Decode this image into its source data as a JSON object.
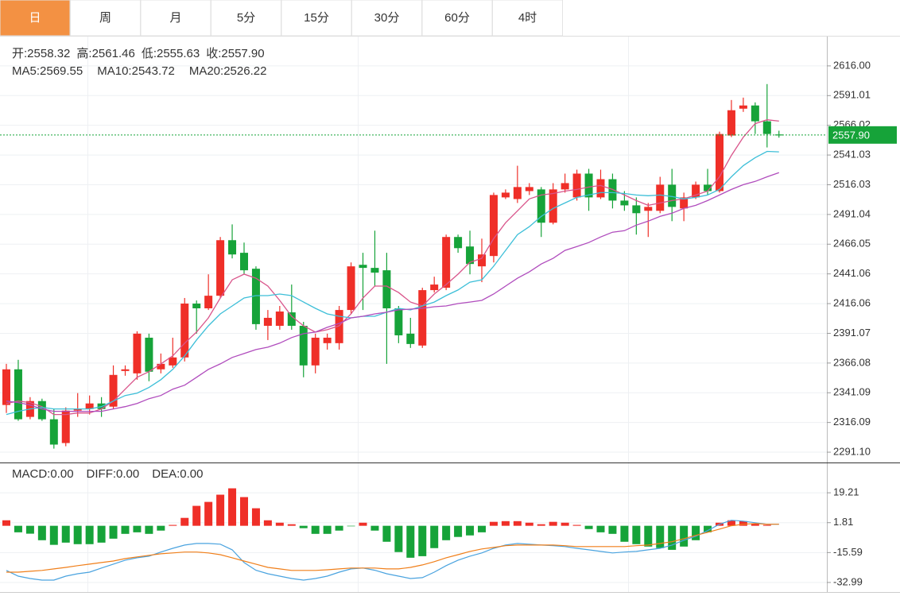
{
  "tabs": [
    "日",
    "周",
    "月",
    "5分",
    "15分",
    "30分",
    "60分",
    "4时"
  ],
  "active_tab": "日",
  "chart_data": [
    {
      "type": "candlestick",
      "up_color": "#ef2f28",
      "down_color": "#16a339",
      "ohlc": [
        {
          "label": "开:",
          "value": "2558.32"
        },
        {
          "label": "高:",
          "value": "2561.46"
        },
        {
          "label": "低:",
          "value": "2555.63"
        },
        {
          "label": "收:",
          "value": "2557.90"
        }
      ],
      "open": [
        2330.8,
        2360.8,
        2320.8,
        2334.1,
        2318.8,
        2298.8,
        2326.1,
        2327.4,
        2332.1,
        2329.4,
        2359.4,
        2357.4,
        2387.4,
        2360.8,
        2364.1,
        2370.8,
        2416.1,
        2412.1,
        2422.7,
        2469.4,
        2458.8,
        2445.4,
        2397.4,
        2397.4,
        2408.7,
        2397.4,
        2364.1,
        2382.8,
        2382.8,
        2410.7,
        2448.7,
        2446.1,
        2444.1,
        2412.1,
        2390.8,
        2380.8,
        2427.4,
        2429.4,
        2472.1,
        2464.1,
        2447.4,
        2456.1,
        2505.4,
        2504.0,
        2510.7,
        2512.1,
        2484.1,
        2512.1,
        2505.4,
        2525.4,
        2505.4,
        2520.7,
        2502.7,
        2498.7,
        2494.1,
        2494.1,
        2516.1,
        2496.1,
        2505.4,
        2516.1,
        2510.7,
        2557.4,
        2580.0,
        2582.7,
        2569.4,
        2558.32
      ],
      "high": [
        2365.4,
        2368.8,
        2337.4,
        2336.1,
        2327.4,
        2328.8,
        2340.8,
        2338.8,
        2337.4,
        2364.1,
        2364.1,
        2392.8,
        2390.8,
        2374.1,
        2387.4,
        2420.8,
        2418.7,
        2440.7,
        2472.1,
        2482.7,
        2467.4,
        2447.4,
        2410.7,
        2414.1,
        2432.1,
        2400.7,
        2390.8,
        2390.8,
        2414.1,
        2450.7,
        2458.8,
        2477.4,
        2458.8,
        2414.1,
        2404.1,
        2429.4,
        2438.7,
        2474.1,
        2474.1,
        2477.4,
        2470.7,
        2509.4,
        2512.1,
        2532.0,
        2517.4,
        2514.1,
        2517.4,
        2525.4,
        2528.7,
        2529.4,
        2528.7,
        2525.4,
        2510.7,
        2505.4,
        2500.7,
        2522.7,
        2529.4,
        2509.4,
        2518.7,
        2529.4,
        2560.7,
        2587.3,
        2589.3,
        2585.3,
        2600.7,
        2561.46
      ],
      "low": [
        2324.1,
        2317.5,
        2318.8,
        2317.5,
        2294.1,
        2296.1,
        2320.8,
        2322.8,
        2320.8,
        2327.4,
        2355.4,
        2352.1,
        2350.8,
        2357.4,
        2362.1,
        2367.4,
        2390.8,
        2410.7,
        2420.7,
        2454.1,
        2440.7,
        2394.1,
        2385.4,
        2394.1,
        2394.1,
        2354.1,
        2357.4,
        2377.4,
        2377.4,
        2407.4,
        2410.7,
        2430.7,
        2365.4,
        2382.8,
        2378.8,
        2378.8,
        2425.4,
        2427.4,
        2458.8,
        2440.7,
        2434.1,
        2450.7,
        2504.0,
        2500.7,
        2507.4,
        2472.1,
        2482.7,
        2509.4,
        2502.7,
        2494.1,
        2504.0,
        2496.1,
        2494.1,
        2474.1,
        2472.1,
        2492.1,
        2485.4,
        2485.4,
        2504.0,
        2507.4,
        2509.4,
        2556.1,
        2577.3,
        2558.7,
        2547.4,
        2555.63
      ],
      "close": [
        2360.8,
        2318.8,
        2334.1,
        2318.8,
        2297.5,
        2326.1,
        2327.4,
        2332.1,
        2327.4,
        2356.1,
        2360.8,
        2390.8,
        2358.8,
        2365.4,
        2370.8,
        2416.1,
        2412.1,
        2422.7,
        2469.4,
        2457.4,
        2444.1,
        2398.8,
        2404.1,
        2409.4,
        2397.4,
        2364.1,
        2387.4,
        2387.4,
        2410.7,
        2447.4,
        2446.1,
        2442.1,
        2412.1,
        2389.4,
        2382.1,
        2427.4,
        2432.1,
        2472.1,
        2462.7,
        2449.4,
        2457.4,
        2507.4,
        2509.4,
        2514.1,
        2514.1,
        2484.1,
        2512.1,
        2517.4,
        2525.4,
        2505.4,
        2520.7,
        2502.7,
        2498.7,
        2492.1,
        2497.4,
        2516.1,
        2497.4,
        2505.4,
        2516.1,
        2510.7,
        2558.7,
        2578.7,
        2582.7,
        2569.4,
        2558.7,
        2557.9
      ],
      "series": [
        {
          "name": "MA5: ",
          "legend_value": "2569.55",
          "color": "#d9558b",
          "values": [
            2332.1,
            2334.1,
            2332.8,
            2329.4,
            2322.8,
            2322.8,
            2324.1,
            2324.1,
            2327.5,
            2334.1,
            2344.1,
            2354.1,
            2358.8,
            2365.4,
            2372.1,
            2382.8,
            2392.1,
            2404.1,
            2420.8,
            2436.1,
            2440.8,
            2437.4,
            2430.8,
            2418.8,
            2405.4,
            2397.4,
            2392.1,
            2394.1,
            2397.4,
            2407.4,
            2420.8,
            2430.8,
            2430.8,
            2425.4,
            2417.4,
            2414.1,
            2424.1,
            2432.1,
            2440.8,
            2450.8,
            2454.1,
            2470.7,
            2484.1,
            2494.1,
            2504.1,
            2507.4,
            2508.7,
            2510.7,
            2512.1,
            2514.1,
            2515.4,
            2512.1,
            2507.4,
            2502.7,
            2498.7,
            2500.7,
            2502.7,
            2504.1,
            2507.4,
            2510.7,
            2522.7,
            2540.7,
            2556.0,
            2567.4,
            2570.7,
            2569.55
          ]
        },
        {
          "name": "MA10: ",
          "legend_value": "2543.72",
          "color": "#3dbfd8",
          "values": [
            2322.8,
            2325.5,
            2327.5,
            2328.8,
            2327.5,
            2327.5,
            2327.5,
            2327.5,
            2329.4,
            2334.1,
            2338.8,
            2340.8,
            2345.5,
            2352.1,
            2360.8,
            2372.1,
            2385.5,
            2397.4,
            2407.4,
            2414.1,
            2420.8,
            2422.8,
            2422.8,
            2424.1,
            2422.8,
            2417.4,
            2412.1,
            2407.4,
            2405.4,
            2404.1,
            2405.4,
            2405.4,
            2408.8,
            2412.1,
            2410.8,
            2414.1,
            2417.4,
            2422.8,
            2427.5,
            2434.1,
            2436.1,
            2447.5,
            2460.8,
            2474.1,
            2480.8,
            2489.4,
            2496.1,
            2500.7,
            2505.4,
            2507.4,
            2509.4,
            2509.4,
            2508.7,
            2507.4,
            2506.8,
            2507.4,
            2506.1,
            2504.1,
            2505.4,
            2507.4,
            2512.1,
            2522.7,
            2532.1,
            2538.8,
            2544.1,
            2543.72
          ]
        },
        {
          "name": "MA20: ",
          "legend_value": "2526.22",
          "color": "#b04cbd",
          "values": [
            2334.1,
            2332.8,
            2330.8,
            2327.5,
            2325.5,
            2325.5,
            2325.5,
            2325.5,
            2325.5,
            2327.5,
            2329.4,
            2332.1,
            2336.1,
            2338.8,
            2344.1,
            2347.5,
            2354.1,
            2360.8,
            2365.4,
            2370.8,
            2374.1,
            2377.4,
            2379.4,
            2382.8,
            2387.5,
            2390.8,
            2392.1,
            2396.1,
            2399.4,
            2404.1,
            2405.4,
            2407.4,
            2408.8,
            2410.8,
            2411.4,
            2412.1,
            2413.4,
            2414.1,
            2416.1,
            2417.4,
            2418.8,
            2424.1,
            2430.8,
            2437.4,
            2442.8,
            2449.4,
            2454.1,
            2460.8,
            2464.1,
            2467.4,
            2472.1,
            2476.1,
            2477.4,
            2482.1,
            2485.4,
            2489.4,
            2492.1,
            2496.1,
            2498.7,
            2502.7,
            2507.4,
            2512.1,
            2516.1,
            2518.8,
            2522.7,
            2526.22
          ]
        }
      ],
      "last_price": {
        "value": 2557.9,
        "label": "2557.90",
        "color": "#16a339"
      },
      "ylim": [
        2282.44,
        2640.66
      ],
      "yticks": [
        {
          "value": 2616.0,
          "label": "2616.00"
        },
        {
          "value": 2591.01,
          "label": "2591.01"
        },
        {
          "value": 2566.02,
          "label": "2566.02"
        },
        {
          "value": 2541.03,
          "label": "2541.03"
        },
        {
          "value": 2516.03,
          "label": "2516.03"
        },
        {
          "value": 2491.04,
          "label": "2491.04"
        },
        {
          "value": 2466.05,
          "label": "2466.05"
        },
        {
          "value": 2441.06,
          "label": "2441.06"
        },
        {
          "value": 2416.06,
          "label": "2416.06"
        },
        {
          "value": 2391.07,
          "label": "2391.07"
        },
        {
          "value": 2366.08,
          "label": "2366.08"
        },
        {
          "value": 2341.09,
          "label": "2341.09"
        },
        {
          "value": 2316.09,
          "label": "2316.09"
        },
        {
          "value": 2291.1,
          "label": "2291.10"
        }
      ],
      "grid": true
    },
    {
      "type": "macd",
      "up_color": "#ef2f28",
      "down_color": "#16a339",
      "series": [
        {
          "name": "MACD:",
          "legend_value": "0.00",
          "style": "bar",
          "color": "#e0403a",
          "values": [
            3.2,
            -3.8,
            -4.6,
            -8.4,
            -11.1,
            -9.8,
            -10.7,
            -10.7,
            -9.8,
            -7.5,
            -4.7,
            -3.8,
            -4.7,
            -2.8,
            0.5,
            4.6,
            11.6,
            13.9,
            18.1,
            21.8,
            16.7,
            10.2,
            3.2,
            1.8,
            0.9,
            -1.4,
            -4.7,
            -4.7,
            -2.8,
            -0.3,
            1.8,
            -2.8,
            -9.3,
            -15.3,
            -18.6,
            -17.7,
            -13.0,
            -8.4,
            -6.5,
            -5.6,
            -3.8,
            2.3,
            2.7,
            2.7,
            1.8,
            0.9,
            2.3,
            1.8,
            0.5,
            -1.9,
            -3.8,
            -4.7,
            -9.3,
            -10.7,
            -12.1,
            -13.0,
            -14.0,
            -12.1,
            -8.4,
            -3.8,
            1.8,
            3.2,
            2.7,
            1.4,
            0.5,
            0
          ]
        },
        {
          "name": "DIFF:",
          "legend_value": "0.00",
          "style": "line",
          "color": "#4aa3df",
          "values": [
            -26.0,
            -29.3,
            -30.7,
            -31.6,
            -31.6,
            -29.3,
            -27.9,
            -27.0,
            -24.6,
            -22.3,
            -20.0,
            -18.6,
            -17.7,
            -15.3,
            -13.1,
            -11.2,
            -10.3,
            -10.3,
            -10.7,
            -14.0,
            -21.4,
            -25.9,
            -27.9,
            -29.3,
            -30.7,
            -31.6,
            -30.7,
            -29.3,
            -27.0,
            -25.1,
            -24.6,
            -25.9,
            -27.9,
            -29.3,
            -30.7,
            -30.2,
            -27.0,
            -23.2,
            -20.0,
            -17.7,
            -15.8,
            -13.1,
            -11.2,
            -10.3,
            -10.7,
            -11.2,
            -11.6,
            -12.1,
            -13.1,
            -14.0,
            -14.9,
            -15.8,
            -15.3,
            -14.9,
            -14.0,
            -13.1,
            -11.2,
            -8.4,
            -6.1,
            -2.8,
            0.9,
            3.2,
            2.7,
            1.8,
            0.9,
            0.9
          ]
        },
        {
          "name": "DEA:",
          "legend_value": "0.00",
          "style": "line",
          "color": "#f07f1a",
          "values": [
            -27.0,
            -27.0,
            -26.5,
            -26.0,
            -25.1,
            -24.2,
            -23.2,
            -22.3,
            -21.4,
            -20.5,
            -19.1,
            -18.1,
            -17.2,
            -16.3,
            -15.8,
            -15.3,
            -15.3,
            -15.8,
            -16.8,
            -18.6,
            -20.5,
            -22.3,
            -24.2,
            -25.1,
            -26.0,
            -26.0,
            -26.0,
            -25.6,
            -25.1,
            -24.6,
            -24.6,
            -24.6,
            -25.1,
            -25.1,
            -24.2,
            -22.8,
            -20.9,
            -18.6,
            -16.8,
            -14.9,
            -13.5,
            -12.6,
            -11.6,
            -11.2,
            -11.2,
            -11.2,
            -11.2,
            -11.6,
            -12.1,
            -12.1,
            -12.1,
            -12.1,
            -12.1,
            -11.6,
            -11.2,
            -10.3,
            -9.3,
            -7.5,
            -5.6,
            -3.8,
            -1.9,
            0,
            0.9,
            1.3,
            0.9,
            0.9
          ]
        }
      ],
      "ylim": [
        -38.56,
        36.38
      ],
      "yticks": [
        {
          "value": 19.21,
          "label": "19.21"
        },
        {
          "value": 1.81,
          "label": "1.81"
        },
        {
          "value": -15.59,
          "label": "-15.59"
        },
        {
          "value": -32.99,
          "label": "-32.99"
        }
      ],
      "grid": true
    }
  ]
}
